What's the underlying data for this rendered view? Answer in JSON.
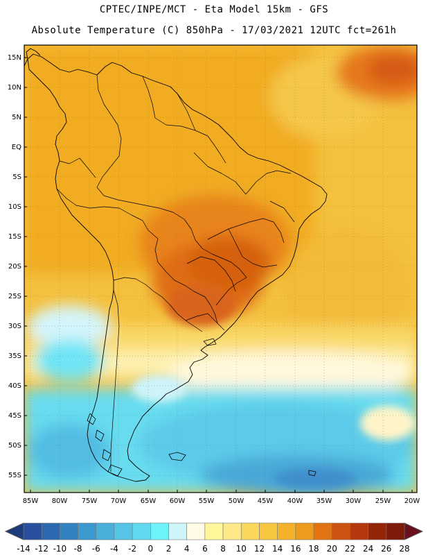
{
  "title": {
    "line1": "CPTEC/INPE/MCT -  Eta Model 15km - GFS",
    "line2": "Absolute Temperature (C) 850hPa - 17/03/2021 12UTC fct=261h"
  },
  "map": {
    "lon_range": [
      -86,
      -19
    ],
    "lat_range": [
      -58,
      17
    ],
    "lat_labels": [
      "15N",
      "10N",
      "5N",
      "EQ",
      "5S",
      "10S",
      "15S",
      "20S",
      "25S",
      "30S",
      "35S",
      "40S",
      "45S",
      "50S",
      "55S"
    ],
    "lat_values": [
      15,
      10,
      5,
      0,
      -5,
      -10,
      -15,
      -20,
      -25,
      -30,
      -35,
      -40,
      -45,
      -50,
      -55
    ],
    "lon_labels": [
      "85W",
      "80W",
      "75W",
      "70W",
      "65W",
      "60W",
      "55W",
      "50W",
      "45W",
      "40W",
      "35W",
      "30W",
      "25W",
      "20W"
    ],
    "lon_values": [
      -85,
      -80,
      -75,
      -70,
      -65,
      -60,
      -55,
      -50,
      -45,
      -40,
      -35,
      -30,
      -25,
      -20
    ]
  },
  "colorbar": {
    "labels": [
      "-14",
      "-12",
      "-10",
      "-8",
      "-6",
      "-4",
      "-2",
      "0",
      "2",
      "4",
      "6",
      "8",
      "10",
      "12",
      "14",
      "16",
      "18",
      "20",
      "22",
      "24",
      "26",
      "28"
    ],
    "colors": [
      "#2a4f9e",
      "#2c68b0",
      "#3381c0",
      "#3c99cf",
      "#49b0dc",
      "#56c4e6",
      "#61d9ef",
      "#6ef2fa",
      "#cdf6fb",
      "#fffbe6",
      "#fff79a",
      "#fde98a",
      "#fbd85a",
      "#f7c63f",
      "#f3b22a",
      "#ee9a1c",
      "#e27313",
      "#cc5410",
      "#b3390c",
      "#952509",
      "#7c1b0a"
    ],
    "low_color": "#1e3c7a",
    "high_color": "#6a0f1e"
  }
}
